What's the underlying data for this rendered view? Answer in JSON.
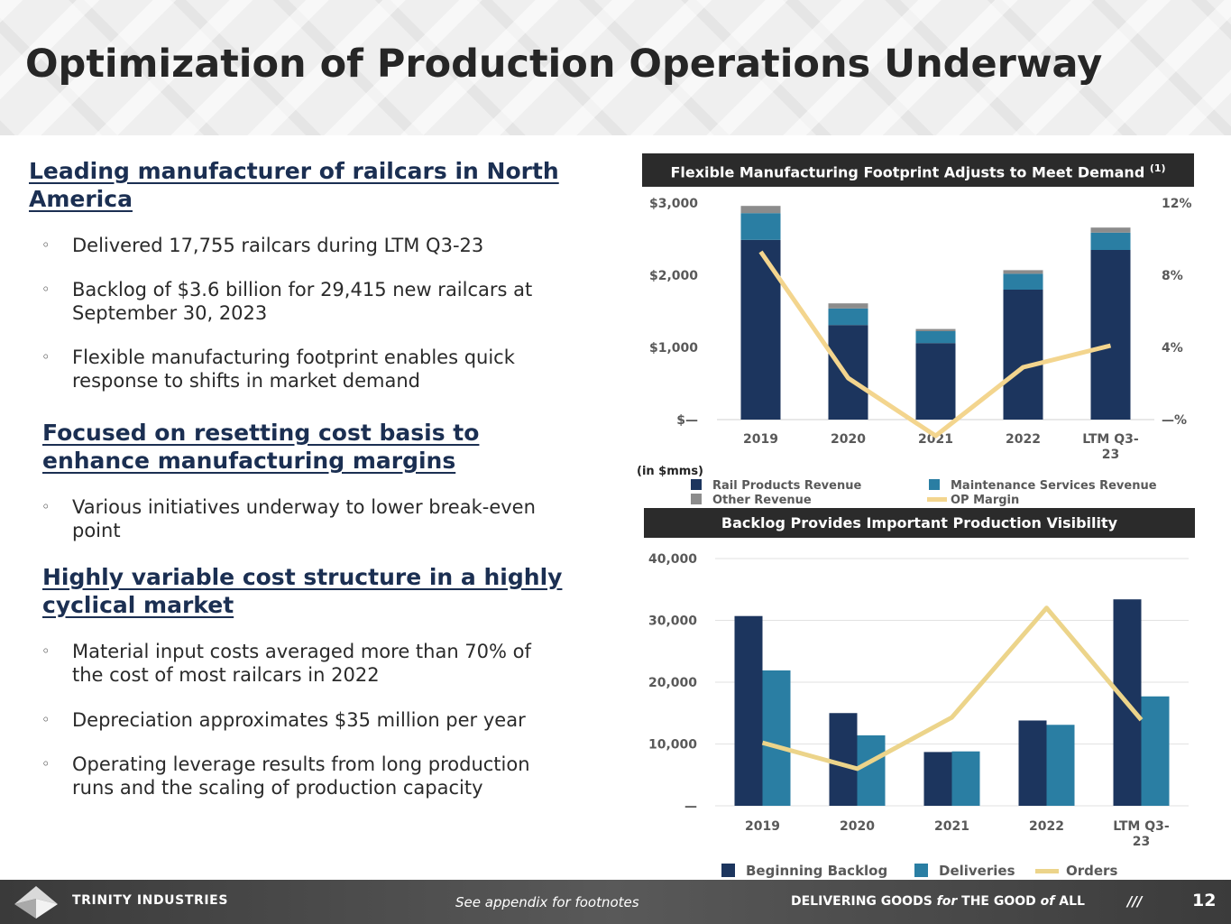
{
  "title": "Optimization of Production Operations Underway",
  "left": {
    "sections": [
      {
        "heading_lines": [
          "Leading manufacturer of railcars in North",
          "America"
        ],
        "bullets": [
          [
            "Delivered 17,755 railcars during LTM Q3-23"
          ],
          [
            "Backlog of $3.6 billion for 29,415 new railcars at",
            "September 30, 2023"
          ],
          [
            "Flexible manufacturing footprint enables quick",
            "response to shifts in market demand"
          ]
        ]
      },
      {
        "heading_lines": [
          "Focused on resetting cost basis to",
          "enhance manufacturing margins"
        ],
        "bullets": [
          [
            "Various initiatives underway to lower break-even",
            "point"
          ]
        ]
      },
      {
        "heading_lines": [
          "Highly variable cost structure in a highly",
          "cyclical market"
        ],
        "bullets": [
          [
            "Material input costs averaged more than 70% of",
            "the cost of most railcars in 2022"
          ],
          [
            "Depreciation approximates $35 million per year"
          ],
          [
            "Operating leverage results from long production",
            "runs and the scaling of production capacity"
          ]
        ]
      }
    ],
    "bullet_glyph": "◦"
  },
  "panel1": {
    "title": "Flexible Manufacturing Footprint Adjusts to Meet Demand",
    "footnote_marker": "(1)",
    "units_note": "(in $mms)"
  },
  "panel2": {
    "title": "Backlog Provides Important Production Visibility"
  },
  "chart_data": [
    {
      "type": "bar",
      "stacked": true,
      "categories": [
        "2019",
        "2020",
        "2021",
        "2022",
        "LTM Q3-23"
      ],
      "category_lines": [
        [
          "2019"
        ],
        [
          "2020"
        ],
        [
          "2021"
        ],
        [
          "2022"
        ],
        [
          "LTM Q3-",
          "23"
        ]
      ],
      "series": [
        {
          "name": "Rail Products Revenue",
          "values": [
            2490,
            1310,
            1060,
            1800,
            2350
          ],
          "color": "#1c355e"
        },
        {
          "name": "Maintenance Services Revenue",
          "values": [
            370,
            230,
            165,
            220,
            240
          ],
          "color": "#2a7ea3"
        },
        {
          "name": "Other Revenue",
          "values": [
            100,
            70,
            30,
            50,
            70
          ],
          "color": "#8c8c8c"
        }
      ],
      "line_series": {
        "name": "OP Margin",
        "axis": "right",
        "values": [
          9.3,
          2.3,
          -0.9,
          2.9,
          4.1
        ],
        "color": "#f3d58e"
      },
      "y_ticks": [
        "$—",
        "$1,000",
        "$2,000",
        "$3,000"
      ],
      "y_tick_values": [
        0,
        1000,
        2000,
        3000
      ],
      "ylim": [
        0,
        3000
      ],
      "y2_ticks": [
        "—%",
        "4%",
        "8%",
        "12%"
      ],
      "y2_tick_values": [
        0,
        4,
        8,
        12
      ],
      "y2lim": [
        0,
        12
      ],
      "legend": [
        {
          "name": "Rail Products Revenue",
          "kind": "box",
          "color": "#1c355e"
        },
        {
          "name": "Maintenance Services Revenue",
          "kind": "box",
          "color": "#2a7ea3"
        },
        {
          "name": "Other Revenue",
          "kind": "box",
          "color": "#8c8c8c"
        },
        {
          "name": "OP Margin",
          "kind": "line",
          "color": "#f3d58e"
        }
      ],
      "legend_placement": "bottom",
      "grid": false
    },
    {
      "type": "bar",
      "categories": [
        "2019",
        "2020",
        "2021",
        "2022",
        "LTM Q3-23"
      ],
      "category_lines": [
        [
          "2019"
        ],
        [
          "2020"
        ],
        [
          "2021"
        ],
        [
          "2022"
        ],
        [
          "LTM Q3-",
          "23"
        ]
      ],
      "series": [
        {
          "name": "Beginning Backlog",
          "values": [
            30700,
            15000,
            8700,
            13800,
            33400
          ],
          "color": "#1c355e"
        },
        {
          "name": "Deliveries",
          "values": [
            21900,
            11400,
            8800,
            13100,
            17700
          ],
          "color": "#2a7ea3"
        }
      ],
      "line_series": {
        "name": "Orders",
        "values": [
          10200,
          6000,
          14300,
          32000,
          13900
        ],
        "color": "#ecd48a"
      },
      "y_ticks": [
        "—",
        "10,000",
        "20,000",
        "30,000",
        "40,000"
      ],
      "y_tick_values": [
        0,
        10000,
        20000,
        30000,
        40000
      ],
      "ylim": [
        0,
        40000
      ],
      "legend": [
        {
          "name": "Beginning Backlog",
          "kind": "box",
          "color": "#1c355e"
        },
        {
          "name": "Deliveries",
          "kind": "box",
          "color": "#2a7ea3"
        },
        {
          "name": "Orders",
          "kind": "line",
          "color": "#ecd48a"
        }
      ],
      "legend_placement": "bottom",
      "grid": true
    }
  ],
  "footer": {
    "brand": "TRINITY INDUSTRIES",
    "footnote": "See appendix for footnotes",
    "tagline_parts": [
      "DELIVERING GOODS ",
      "for",
      " THE GOOD ",
      "of",
      " ALL"
    ],
    "slashes": "///",
    "page_number": "12"
  }
}
